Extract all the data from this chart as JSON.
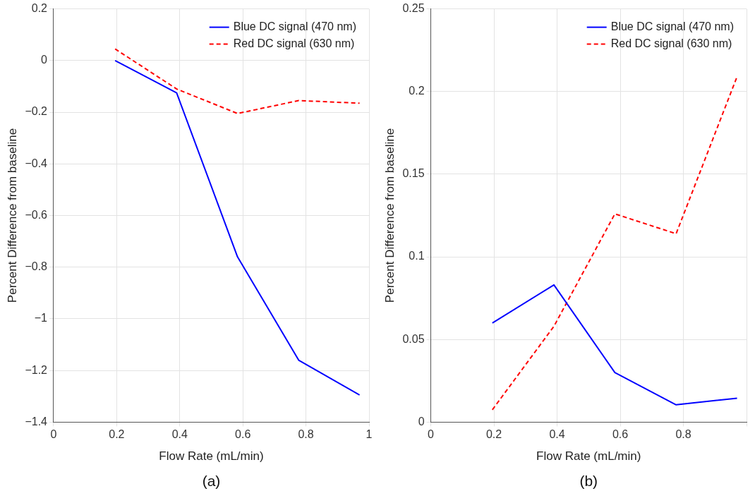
{
  "chart_data": [
    {
      "type": "line",
      "xlabel": "Flow Rate (mL/min)",
      "ylabel": "Percent Difference from baseline",
      "annotations": [
        "(a)"
      ],
      "x": [
        0.195,
        0.39,
        0.583,
        0.777,
        0.97
      ],
      "series": [
        {
          "name": "Blue DC signal (470 nm)",
          "color": "#0000ff",
          "values": [
            0.0,
            -0.125,
            -0.76,
            -1.16,
            -1.295
          ],
          "line_style": "solid"
        },
        {
          "name": "Red DC signal (630 nm)",
          "color": "#ff0000",
          "values": [
            0.045,
            -0.11,
            -0.205,
            -0.155,
            -0.165
          ],
          "line_style": "dashed"
        }
      ],
      "xlim": [
        0,
        1
      ],
      "xticks": [
        0,
        0.2,
        0.4,
        0.6,
        0.8,
        1
      ],
      "ylim": [
        -1.4,
        0.2
      ],
      "yticks": [
        {
          "value": -1.4,
          "label": "−1.4"
        },
        {
          "value": -1.2,
          "label": "−1.2"
        },
        {
          "value": -1,
          "label": "−1"
        },
        {
          "value": -0.8,
          "label": "−0.8"
        },
        {
          "value": -0.6,
          "label": "−0.6"
        },
        {
          "value": -0.4,
          "label": "−0.4"
        },
        {
          "value": -0.2,
          "label": "−0.2"
        },
        0,
        0.2
      ],
      "grid": true,
      "legend": "top right",
      "marker": "none"
    },
    {
      "type": "line",
      "xlabel": "Flow Rate (mL/min)",
      "ylabel": "Percent Difference from baseline",
      "annotations": [
        "(b)"
      ],
      "x": [
        0.195,
        0.39,
        0.583,
        0.777,
        0.97
      ],
      "series": [
        {
          "name": "Blue DC signal (470 nm)",
          "color": "#0000ff",
          "values": [
            0.06,
            0.083,
            0.03,
            0.0105,
            0.0145
          ],
          "line_style": "solid"
        },
        {
          "name": "Red DC signal (630 nm)",
          "color": "#ff0000",
          "values": [
            0.0075,
            0.058,
            0.126,
            0.114,
            0.209
          ],
          "line_style": "dashed"
        }
      ],
      "xlim": [
        0,
        1
      ],
      "xticks": [
        0,
        0.2,
        0.4,
        0.6,
        0.8,
        {
          "value": 1,
          "label": null
        }
      ],
      "ylim": [
        0,
        0.25
      ],
      "yticks": [
        0,
        0.05,
        0.1,
        0.15,
        0.2,
        0.25
      ],
      "grid": true,
      "legend": "top right",
      "marker": "none"
    }
  ]
}
